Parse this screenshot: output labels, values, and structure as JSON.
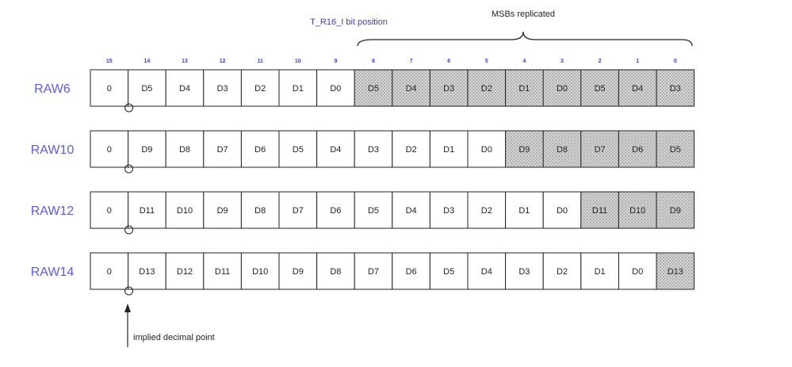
{
  "header": {
    "bit_position_label": "T_R16_I bit position",
    "msb_label": "MSBs replicated"
  },
  "bit_positions": [
    "15",
    "14",
    "13",
    "12",
    "11",
    "10",
    "9",
    "8",
    "7",
    "6",
    "5",
    "4",
    "3",
    "2",
    "1",
    "0"
  ],
  "rows": [
    {
      "label": "RAW6",
      "cells": [
        "0",
        "D5",
        "D4",
        "D3",
        "D2",
        "D1",
        "D0",
        "D5",
        "D4",
        "D3",
        "D2",
        "D1",
        "D0",
        "D5",
        "D4",
        "D3"
      ],
      "replicated_from": 7
    },
    {
      "label": "RAW10",
      "cells": [
        "0",
        "D9",
        "D8",
        "D7",
        "D6",
        "D5",
        "D4",
        "D3",
        "D2",
        "D1",
        "D0",
        "D9",
        "D8",
        "D7",
        "D6",
        "D5"
      ],
      "replicated_from": 11
    },
    {
      "label": "RAW12",
      "cells": [
        "0",
        "D11",
        "D10",
        "D9",
        "D8",
        "D7",
        "D6",
        "D5",
        "D4",
        "D3",
        "D2",
        "D1",
        "D0",
        "D11",
        "D10",
        "D9"
      ],
      "replicated_from": 13
    },
    {
      "label": "RAW14",
      "cells": [
        "0",
        "D13",
        "D12",
        "D11",
        "D10",
        "D9",
        "D8",
        "D7",
        "D6",
        "D5",
        "D4",
        "D3",
        "D2",
        "D1",
        "D0",
        "D13"
      ],
      "replicated_from": 15
    }
  ],
  "footer": {
    "decimal_point_label": "implied decimal point"
  },
  "colors": {
    "row_label": "#5a5aff",
    "bit_position": "#4040e0",
    "replicated_fill": "#d0d0d0"
  }
}
